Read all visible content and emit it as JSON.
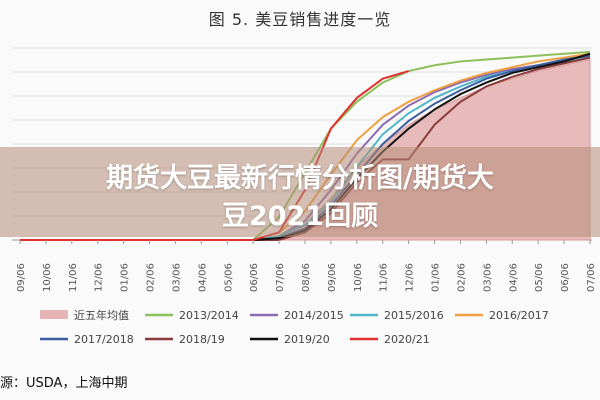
{
  "chart_data": {
    "type": "line",
    "title": "图 5. 美豆销售进度一览",
    "x_ticks": [
      "09/06",
      "10/06",
      "11/06",
      "12/06",
      "01/06",
      "02/06",
      "03/06",
      "04/06",
      "05/06",
      "06/06",
      "07/06",
      "08/06",
      "09/06",
      "10/06",
      "11/06",
      "12/06",
      "01/06",
      "02/06",
      "03/06",
      "04/06",
      "05/06",
      "06/06",
      "07/06"
    ],
    "ylim": [
      0,
      1
    ],
    "grid": "horizontal",
    "legend_position": "bottom",
    "series": [
      {
        "name": "近五年均值",
        "type": "area",
        "color": "#e6b4b4",
        "x": [
          0,
          1,
          2,
          3,
          4,
          5,
          6,
          7,
          8,
          9,
          10,
          11,
          12,
          13,
          14,
          15,
          16,
          17,
          18,
          19,
          20,
          21,
          22
        ],
        "y": [
          0,
          0,
          0,
          0,
          0,
          0,
          0,
          0,
          0,
          0,
          0.02,
          0.08,
          0.22,
          0.38,
          0.5,
          0.6,
          0.68,
          0.74,
          0.8,
          0.84,
          0.88,
          0.91,
          0.94
        ]
      },
      {
        "name": "2013/2014",
        "color": "#8cc05a",
        "x": [
          0,
          5,
          9,
          10,
          11,
          12,
          13,
          14,
          15,
          16,
          17,
          18,
          19,
          20,
          21,
          22
        ],
        "y": [
          0,
          0,
          0,
          0.12,
          0.35,
          0.58,
          0.72,
          0.82,
          0.88,
          0.91,
          0.93,
          0.94,
          0.95,
          0.96,
          0.97,
          0.98
        ]
      },
      {
        "name": "2014/2015",
        "color": "#8c6bb0",
        "x": [
          0,
          5,
          9,
          10,
          11,
          12,
          13,
          14,
          15,
          16,
          17,
          18,
          19,
          20,
          21,
          22
        ],
        "y": [
          0,
          0,
          0,
          0.02,
          0.1,
          0.26,
          0.45,
          0.6,
          0.7,
          0.77,
          0.82,
          0.86,
          0.89,
          0.91,
          0.93,
          0.95
        ]
      },
      {
        "name": "2015/2016",
        "color": "#4fb6c8",
        "x": [
          0,
          5,
          9,
          10,
          11,
          12,
          13,
          14,
          15,
          16,
          17,
          18,
          19,
          20,
          21,
          22
        ],
        "y": [
          0,
          0,
          0,
          0.02,
          0.08,
          0.2,
          0.38,
          0.55,
          0.66,
          0.74,
          0.8,
          0.85,
          0.88,
          0.91,
          0.93,
          0.95
        ]
      },
      {
        "name": "2016/2017",
        "color": "#f0a040",
        "x": [
          0,
          5,
          9,
          10,
          11,
          12,
          13,
          14,
          15,
          16,
          17,
          18,
          19,
          20,
          21,
          22
        ],
        "y": [
          0,
          0,
          0,
          0.04,
          0.15,
          0.34,
          0.52,
          0.64,
          0.72,
          0.78,
          0.83,
          0.87,
          0.9,
          0.93,
          0.95,
          0.97
        ]
      },
      {
        "name": "2017/2018",
        "color": "#3a5ea0",
        "x": [
          0,
          5,
          9,
          10,
          11,
          12,
          13,
          14,
          15,
          16,
          17,
          18,
          19,
          20,
          21,
          22
        ],
        "y": [
          0,
          0,
          0,
          0.01,
          0.06,
          0.18,
          0.34,
          0.5,
          0.62,
          0.71,
          0.78,
          0.84,
          0.88,
          0.91,
          0.94,
          0.96
        ]
      },
      {
        "name": "2018/19",
        "color": "#8b3a3a",
        "x": [
          0,
          5,
          9,
          10,
          11,
          12,
          13,
          14,
          15,
          16,
          17,
          18,
          19,
          20,
          21,
          22
        ],
        "y": [
          0,
          0,
          0,
          0,
          0.04,
          0.14,
          0.3,
          0.42,
          0.42,
          0.6,
          0.72,
          0.8,
          0.85,
          0.89,
          0.92,
          0.95
        ]
      },
      {
        "name": "2019/20",
        "color": "#111111",
        "x": [
          0,
          5,
          9,
          10,
          11,
          12,
          13,
          14,
          15,
          16,
          17,
          18,
          19,
          20,
          21,
          22
        ],
        "y": [
          0,
          0,
          0,
          0.01,
          0.05,
          0.16,
          0.32,
          0.46,
          0.58,
          0.68,
          0.76,
          0.82,
          0.87,
          0.9,
          0.93,
          0.97
        ]
      },
      {
        "name": "2020/21",
        "color": "#e03030",
        "x": [
          0,
          5,
          9,
          10,
          11,
          12,
          13,
          14,
          15
        ],
        "y": [
          0,
          0,
          0,
          0.04,
          0.26,
          0.58,
          0.74,
          0.84,
          0.88
        ]
      }
    ]
  },
  "source_text": "源：USDA，上海中期",
  "banner": {
    "line1": "期货大豆最新行情分析图/期货大",
    "line2": "豆2021回顾"
  }
}
